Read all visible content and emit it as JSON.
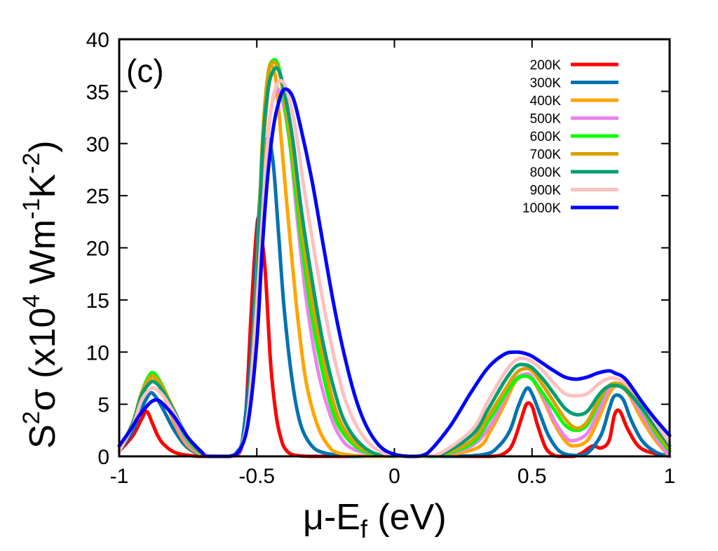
{
  "chart_data": {
    "type": "line",
    "title": "",
    "panel_label": "(c)",
    "xlabel": {
      "mu": "μ",
      "dash": "-E",
      "sub": "f",
      "tail": " (eV)"
    },
    "ylabel": {
      "S": "S",
      "sup2": "2",
      "sigma": "σ",
      "open": " (x10",
      "sup4": "4",
      "wm": " Wm",
      "supm1": "-1",
      "k": "K",
      "supm2": "-2",
      "close": ")"
    },
    "xlim": [
      -1,
      1
    ],
    "ylim": [
      0,
      40
    ],
    "x_ticks": [
      -1,
      -0.5,
      0,
      0.5,
      1
    ],
    "x_tick_labels": [
      "-1",
      "-0.5",
      "0",
      "0.5",
      "1"
    ],
    "y_ticks": [
      0,
      5,
      10,
      15,
      20,
      25,
      30,
      35,
      40
    ],
    "y_tick_labels": [
      "0",
      "5",
      "10",
      "15",
      "20",
      "25",
      "30",
      "35",
      "40"
    ],
    "legend_position": "top-right",
    "series": [
      {
        "name": "200K",
        "color": "#ff0000",
        "x": [
          -1,
          -0.95,
          -0.92,
          -0.9,
          -0.88,
          -0.86,
          -0.84,
          -0.8,
          -0.75,
          -0.7,
          -0.6,
          -0.56,
          -0.54,
          -0.52,
          -0.5,
          -0.49,
          -0.47,
          -0.45,
          -0.43,
          -0.41,
          -0.39,
          -0.36,
          -0.3,
          -0.2,
          0,
          0.2,
          0.35,
          0.4,
          0.43,
          0.46,
          0.48,
          0.5,
          0.52,
          0.55,
          0.58,
          0.6,
          0.65,
          0.68,
          0.72,
          0.75,
          0.78,
          0.8,
          0.82,
          0.85,
          0.9,
          1
        ],
        "y": [
          0.5,
          2,
          3.5,
          4.3,
          3.2,
          2,
          1.2,
          0.4,
          0.1,
          0,
          0,
          0.5,
          4,
          14,
          22,
          22.2,
          18,
          9,
          4,
          1.5,
          0.5,
          0.1,
          0,
          0,
          0,
          0,
          0,
          0.3,
          1.2,
          3.5,
          5,
          4.8,
          3,
          0.8,
          0.1,
          0,
          0,
          0.3,
          1,
          0.8,
          1.5,
          4,
          4.3,
          2.5,
          0.7,
          0
        ]
      },
      {
        "name": "300K",
        "color": "#0072b2",
        "x": [
          -1,
          -0.95,
          -0.92,
          -0.89,
          -0.87,
          -0.84,
          -0.8,
          -0.75,
          -0.68,
          -0.6,
          -0.57,
          -0.55,
          -0.52,
          -0.5,
          -0.48,
          -0.46,
          -0.44,
          -0.42,
          -0.4,
          -0.37,
          -0.34,
          -0.3,
          -0.25,
          -0.15,
          0,
          0.2,
          0.33,
          0.38,
          0.42,
          0.45,
          0.48,
          0.5,
          0.53,
          0.56,
          0.6,
          0.65,
          0.7,
          0.75,
          0.78,
          0.8,
          0.83,
          0.86,
          0.9,
          0.95,
          1
        ],
        "y": [
          0.5,
          2.5,
          4.5,
          6,
          5.8,
          4.5,
          2.5,
          0.8,
          0,
          0,
          0.5,
          2,
          10,
          20,
          28,
          30.5,
          28,
          21,
          14,
          7,
          3,
          1,
          0.3,
          0,
          0,
          0,
          0.2,
          1,
          2.5,
          4.8,
          6.5,
          6,
          4,
          2,
          0.5,
          0.1,
          0.3,
          2,
          4.5,
          5.8,
          5.5,
          3.5,
          1.5,
          0.4,
          0
        ]
      },
      {
        "name": "400K",
        "color": "#ffa500",
        "x": [
          -1,
          -0.95,
          -0.92,
          -0.89,
          -0.86,
          -0.83,
          -0.8,
          -0.75,
          -0.68,
          -0.6,
          -0.56,
          -0.53,
          -0.5,
          -0.48,
          -0.46,
          -0.45,
          -0.43,
          -0.41,
          -0.38,
          -0.35,
          -0.32,
          -0.28,
          -0.24,
          -0.2,
          -0.1,
          0,
          0.15,
          0.3,
          0.35,
          0.4,
          0.44,
          0.48,
          0.5,
          0.54,
          0.58,
          0.62,
          0.65,
          0.7,
          0.74,
          0.78,
          0.81,
          0.85,
          0.9,
          0.95,
          1
        ],
        "y": [
          0.5,
          3,
          5.5,
          7.2,
          7,
          5.3,
          3.2,
          1,
          0,
          0,
          0.7,
          4,
          15,
          28,
          35,
          37.5,
          36,
          30,
          21,
          13,
          7,
          3,
          1,
          0.3,
          0,
          0,
          0,
          0.8,
          2.5,
          5,
          7.2,
          7.8,
          7.5,
          5.5,
          3.2,
          1.5,
          1,
          1.5,
          3.5,
          6,
          6.8,
          6,
          3.5,
          1.5,
          0
        ]
      },
      {
        "name": "500K",
        "color": "#ee82ee",
        "x": [
          -1,
          -0.95,
          -0.92,
          -0.89,
          -0.86,
          -0.83,
          -0.8,
          -0.75,
          -0.68,
          -0.6,
          -0.56,
          -0.53,
          -0.5,
          -0.47,
          -0.45,
          -0.43,
          -0.41,
          -0.38,
          -0.35,
          -0.32,
          -0.28,
          -0.24,
          -0.2,
          -0.15,
          -0.05,
          0.05,
          0.15,
          0.28,
          0.35,
          0.4,
          0.44,
          0.48,
          0.5,
          0.54,
          0.58,
          0.62,
          0.65,
          0.7,
          0.74,
          0.78,
          0.81,
          0.85,
          0.9,
          0.95,
          1
        ],
        "y": [
          0.5,
          3.2,
          5.8,
          7.6,
          7.4,
          5.8,
          3.6,
          1.2,
          0,
          0,
          0.7,
          4,
          14,
          27,
          33,
          35,
          34.5,
          30,
          22,
          15,
          8.5,
          4.5,
          2,
          0.7,
          0.1,
          0,
          0,
          1,
          3,
          5.5,
          7.4,
          7.9,
          7.6,
          5.8,
          3.5,
          1.9,
          1.5,
          2.2,
          4.2,
          6.5,
          7,
          6.2,
          4,
          1.8,
          0
        ]
      },
      {
        "name": "600K",
        "color": "#00ff00",
        "x": [
          -1,
          -0.95,
          -0.92,
          -0.89,
          -0.87,
          -0.84,
          -0.8,
          -0.75,
          -0.68,
          -0.6,
          -0.56,
          -0.53,
          -0.5,
          -0.48,
          -0.46,
          -0.44,
          -0.42,
          -0.4,
          -0.37,
          -0.34,
          -0.3,
          -0.26,
          -0.22,
          -0.18,
          -0.12,
          -0.05,
          0.05,
          0.15,
          0.28,
          0.34,
          0.4,
          0.44,
          0.47,
          0.5,
          0.54,
          0.58,
          0.62,
          0.66,
          0.7,
          0.74,
          0.77,
          0.8,
          0.84,
          0.9,
          0.95,
          1
        ],
        "y": [
          0.5,
          3.3,
          6,
          7.8,
          7.9,
          6.6,
          4.3,
          1.5,
          0,
          0,
          0.8,
          5,
          17,
          30,
          36.5,
          38,
          37.3,
          34,
          28,
          21,
          13.5,
          8,
          4,
          2,
          0.6,
          0.1,
          0,
          0,
          1.2,
          3.3,
          5.8,
          7.3,
          7.7,
          7.4,
          6,
          4.5,
          3,
          2.5,
          3,
          5,
          6.5,
          7,
          6.5,
          4.5,
          2.2,
          0.5
        ]
      },
      {
        "name": "700K",
        "color": "#daa000",
        "x": [
          -1,
          -0.95,
          -0.92,
          -0.89,
          -0.87,
          -0.84,
          -0.8,
          -0.75,
          -0.68,
          -0.6,
          -0.56,
          -0.53,
          -0.5,
          -0.48,
          -0.46,
          -0.44,
          -0.42,
          -0.4,
          -0.37,
          -0.34,
          -0.3,
          -0.26,
          -0.22,
          -0.18,
          -0.12,
          -0.05,
          0.05,
          0.15,
          0.28,
          0.34,
          0.4,
          0.44,
          0.47,
          0.5,
          0.54,
          0.58,
          0.62,
          0.66,
          0.7,
          0.74,
          0.77,
          0.8,
          0.84,
          0.9,
          0.95,
          1
        ],
        "y": [
          0.5,
          3.3,
          6,
          7.5,
          7.6,
          6.5,
          4.4,
          1.7,
          0,
          0,
          0.8,
          5,
          17,
          30,
          36.5,
          37.8,
          37,
          34.5,
          29,
          22.5,
          15,
          9.5,
          5,
          2.5,
          0.8,
          0.1,
          0,
          0,
          1.5,
          3.8,
          6.3,
          7.9,
          8.4,
          8.2,
          6.8,
          5.2,
          3.6,
          2.7,
          3.3,
          5.3,
          6.5,
          7,
          6.6,
          4.6,
          2.5,
          0.7
        ]
      },
      {
        "name": "800K",
        "color": "#009e73",
        "x": [
          -1,
          -0.95,
          -0.92,
          -0.89,
          -0.87,
          -0.84,
          -0.8,
          -0.75,
          -0.68,
          -0.6,
          -0.56,
          -0.53,
          -0.5,
          -0.48,
          -0.46,
          -0.44,
          -0.42,
          -0.4,
          -0.37,
          -0.34,
          -0.3,
          -0.26,
          -0.22,
          -0.18,
          -0.12,
          -0.05,
          0.05,
          0.15,
          0.28,
          0.34,
          0.4,
          0.44,
          0.47,
          0.5,
          0.54,
          0.58,
          0.62,
          0.66,
          0.7,
          0.74,
          0.77,
          0.8,
          0.84,
          0.9,
          0.95,
          1
        ],
        "y": [
          0.5,
          3.2,
          5.8,
          7,
          7.1,
          6.2,
          4.3,
          1.8,
          0,
          0,
          0.8,
          5,
          16,
          29,
          35,
          37,
          37,
          35,
          30.5,
          24,
          17,
          11,
          6.5,
          3.3,
          1.1,
          0.1,
          0,
          0,
          2,
          4.5,
          7.2,
          8.6,
          8.8,
          8.5,
          7.4,
          6,
          4.6,
          4,
          4.3,
          5.8,
          6.6,
          6.8,
          6.4,
          4.6,
          2.8,
          1
        ]
      },
      {
        "name": "900K",
        "color": "#ffc0c0",
        "x": [
          -1,
          -0.95,
          -0.92,
          -0.89,
          -0.87,
          -0.84,
          -0.8,
          -0.75,
          -0.68,
          -0.6,
          -0.56,
          -0.53,
          -0.5,
          -0.47,
          -0.45,
          -0.43,
          -0.41,
          -0.39,
          -0.36,
          -0.33,
          -0.29,
          -0.25,
          -0.21,
          -0.17,
          -0.11,
          -0.04,
          0.05,
          0.15,
          0.28,
          0.34,
          0.4,
          0.44,
          0.47,
          0.5,
          0.54,
          0.58,
          0.62,
          0.66,
          0.7,
          0.74,
          0.77,
          0.8,
          0.84,
          0.9,
          0.95,
          1
        ],
        "y": [
          0.5,
          3,
          5.3,
          6.4,
          6.5,
          5.8,
          4.1,
          1.8,
          0.1,
          0,
          0.7,
          4.5,
          14.5,
          27,
          33,
          35.5,
          36,
          35,
          31.5,
          26,
          19.5,
          13.5,
          8.5,
          4.8,
          1.8,
          0.3,
          0,
          0.1,
          2.5,
          5.3,
          8,
          9.2,
          9.4,
          9.1,
          8.2,
          7,
          6,
          5.8,
          6,
          6.9,
          7.4,
          7.5,
          7,
          5.2,
          3.2,
          1.3
        ]
      },
      {
        "name": "1000K",
        "color": "#0000ff",
        "x": [
          -1,
          -0.96,
          -0.93,
          -0.9,
          -0.88,
          -0.86,
          -0.84,
          -0.8,
          -0.75,
          -0.7,
          -0.68,
          -0.6,
          -0.56,
          -0.53,
          -0.5,
          -0.48,
          -0.46,
          -0.44,
          -0.42,
          -0.4,
          -0.37,
          -0.34,
          -0.3,
          -0.26,
          -0.22,
          -0.18,
          -0.14,
          -0.1,
          -0.05,
          0,
          0.05,
          0.08,
          0.12,
          0.2,
          0.28,
          0.34,
          0.4,
          0.44,
          0.47,
          0.5,
          0.54,
          0.58,
          0.62,
          0.66,
          0.7,
          0.74,
          0.78,
          0.8,
          0.84,
          0.9,
          0.95,
          1
        ],
        "y": [
          1,
          2.5,
          3.8,
          4.8,
          5.3,
          5.4,
          5,
          3.8,
          1.8,
          0.4,
          0,
          0,
          0.7,
          3.5,
          11,
          20,
          27,
          31.5,
          34,
          35.2,
          34.5,
          31.5,
          26.5,
          20.5,
          14.5,
          9.5,
          5.5,
          2.8,
          0.9,
          0.2,
          0,
          0,
          0.3,
          2.8,
          6.2,
          8.5,
          9.8,
          10,
          9.9,
          9.6,
          8.9,
          8.2,
          7.6,
          7.4,
          7.6,
          8,
          8.2,
          8,
          7.4,
          5.2,
          3.5,
          2
        ]
      }
    ]
  }
}
